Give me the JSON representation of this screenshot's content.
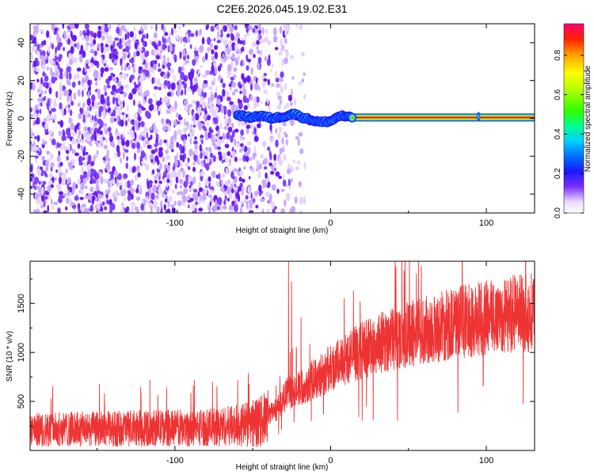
{
  "title": "C2E6.2026.045.19.02.E31",
  "colors": {
    "snr_line": "#ee3333",
    "spectrogram_noise": "#7a2cff",
    "tone_core": "#ff0000"
  },
  "chart_data": [
    {
      "type": "heatmap",
      "name": "spectrogram",
      "xlabel": "Height of straight line (km)",
      "ylabel": "Frequency (Hz)",
      "xlim": [
        -193,
        131
      ],
      "ylim": [
        -50,
        50
      ],
      "xticks": [
        {
          "value": -100,
          "label": "-100"
        },
        {
          "value": 0,
          "label": "0"
        },
        {
          "value": 100,
          "label": "100"
        }
      ],
      "yticks": [
        {
          "value": -40,
          "label": "-40"
        },
        {
          "value": -20,
          "label": "-20"
        },
        {
          "value": 0,
          "label": "0"
        },
        {
          "value": 20,
          "label": "20"
        },
        {
          "value": 40,
          "label": "40"
        }
      ],
      "colorbar": {
        "label": "Normalized spectral amplitude",
        "range": [
          0,
          0.96
        ],
        "ticks": [
          {
            "value": 0.0,
            "label": "0.0"
          },
          {
            "value": 0.2,
            "label": "0.2"
          },
          {
            "value": 0.4,
            "label": "0.4"
          },
          {
            "value": 0.6,
            "label": "0.6"
          },
          {
            "value": 0.8,
            "label": "0.8"
          }
        ]
      },
      "tone": {
        "start_x": -60,
        "end_x": 131,
        "freq_trace": [
          [
            -60,
            2
          ],
          [
            -52,
            0.5
          ],
          [
            -45,
            1.5
          ],
          [
            -38,
            0
          ],
          [
            -30,
            1
          ],
          [
            -24,
            2.5
          ],
          [
            -18,
            0.5
          ],
          [
            -12,
            -1
          ],
          [
            -6,
            -2
          ],
          [
            0,
            -1.5
          ],
          [
            6,
            1.5
          ],
          [
            12,
            0.5
          ],
          [
            20,
            0.3
          ],
          [
            131,
            0.3
          ]
        ],
        "stable_from_x": 12,
        "blip_x": 95
      },
      "noise_edge_x": -40
    },
    {
      "type": "line",
      "name": "snr",
      "xlabel": "Height of straight line (km)",
      "ylabel": "SNR (10 * v/v)",
      "xlim": [
        -193,
        131
      ],
      "ylim": [
        0,
        1930
      ],
      "xticks": [
        {
          "value": -100,
          "label": "-100"
        },
        {
          "value": 0,
          "label": "0"
        },
        {
          "value": 100,
          "label": "100"
        }
      ],
      "yticks": [
        {
          "value": 500,
          "label": "500"
        },
        {
          "value": 1000,
          "label": "1000"
        },
        {
          "value": 1500,
          "label": "1500"
        }
      ],
      "envelope": [
        [
          -193,
          230
        ],
        [
          -150,
          240
        ],
        [
          -100,
          250
        ],
        [
          -80,
          255
        ],
        [
          -60,
          280
        ],
        [
          -45,
          330
        ],
        [
          -35,
          430
        ],
        [
          -28,
          600
        ],
        [
          -20,
          650
        ],
        [
          -10,
          760
        ],
        [
          0,
          860
        ],
        [
          10,
          970
        ],
        [
          20,
          1050
        ],
        [
          35,
          1150
        ],
        [
          50,
          1220
        ],
        [
          70,
          1300
        ],
        [
          90,
          1370
        ],
        [
          110,
          1420
        ],
        [
          131,
          1450
        ]
      ],
      "spikes": [
        {
          "x": -27,
          "y": 1930
        },
        {
          "x": -25,
          "y": 1720
        },
        {
          "x": -19,
          "y": 1360
        },
        {
          "x": -22,
          "y": 1050
        }
      ],
      "min_dip": {
        "x": 98,
        "y": 660
      }
    }
  ]
}
